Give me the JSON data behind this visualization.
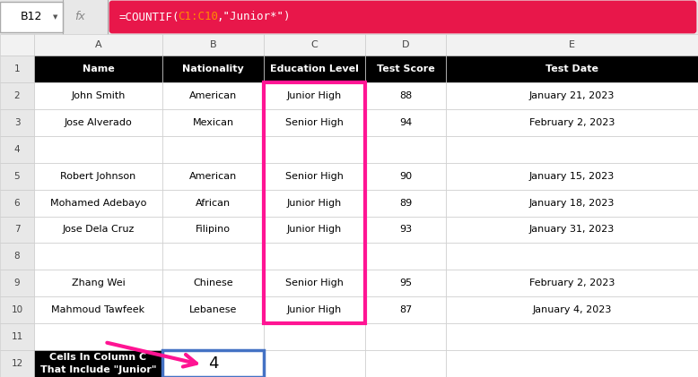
{
  "formula_bar_cell": "B12",
  "formula_parts": [
    {
      "text": "=COUNTIF(",
      "color": "#FFFFFF"
    },
    {
      "text": "C1:C10",
      "color": "#FF8C00"
    },
    {
      "text": ",\"Junior*\")",
      "color": "#FFFFFF"
    }
  ],
  "col_letters": [
    "A",
    "B",
    "C",
    "D",
    "E"
  ],
  "headers": [
    "Name",
    "Nationality",
    "Education Level",
    "Test Score",
    "Test Date"
  ],
  "rows": [
    [
      "John Smith",
      "American",
      "Junior High",
      "88",
      "January 21, 2023"
    ],
    [
      "Jose Alverado",
      "Mexican",
      "Senior High",
      "94",
      "February 2, 2023"
    ],
    [
      "",
      "",
      "",
      "",
      ""
    ],
    [
      "Robert Johnson",
      "American",
      "Senior High",
      "90",
      "January 15, 2023"
    ],
    [
      "Mohamed Adebayo",
      "African",
      "Junior High",
      "89",
      "January 18, 2023"
    ],
    [
      "Jose Dela Cruz",
      "Filipino",
      "Junior High",
      "93",
      "January 31, 2023"
    ],
    [
      "",
      "",
      "",
      "",
      ""
    ],
    [
      "Zhang Wei",
      "Chinese",
      "Senior High",
      "95",
      "February 2, 2023"
    ],
    [
      "Mahmoud Tawfeek",
      "Lebanese",
      "Junior High",
      "87",
      "January 4, 2023"
    ],
    [
      "",
      "",
      "",
      "",
      ""
    ]
  ],
  "result_label": "Cells In Column C\nThat Include \"Junior\"",
  "result_value": "4",
  "bg_color": "#FFFFFF",
  "header_row_bg": "#000000",
  "header_text_color": "#FFFFFF",
  "grid_color": "#CCCCCC",
  "cell_text_color": "#000000",
  "formula_bg": "#E8174A",
  "highlight_border_color": "#FF1493",
  "result_label_bg": "#000000",
  "result_cell_border": "#4472C4",
  "arrow_color": "#FF1493",
  "col_header_bg": "#F2F2F2",
  "row_header_bg": "#E8E8E8",
  "formula_bar_bg": "#E8E8E8"
}
